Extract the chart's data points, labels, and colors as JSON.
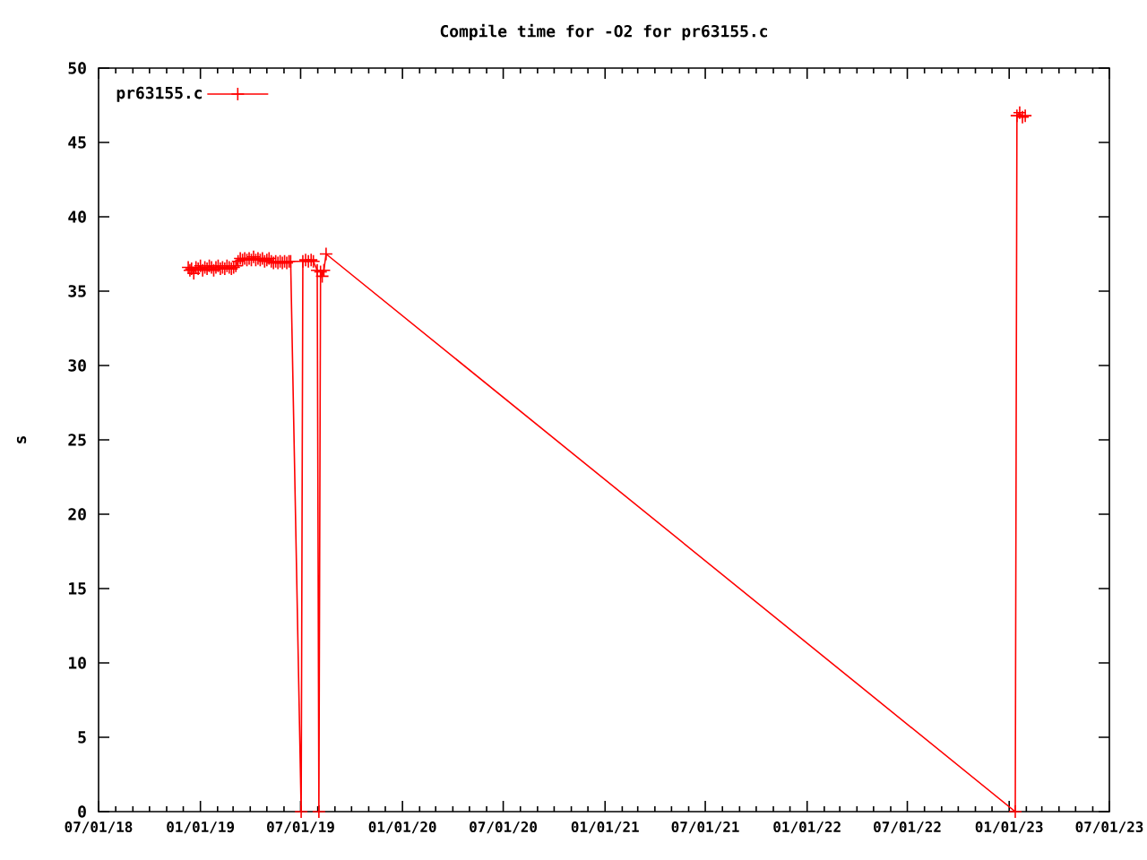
{
  "chart_data": {
    "type": "line",
    "title": "Compile time for -O2 for pr63155.c",
    "ylabel": "s",
    "x": [
      "2018-12-10",
      "2018-12-13",
      "2018-12-16",
      "2018-12-20",
      "2018-12-24",
      "2018-12-28",
      "2019-01-01",
      "2019-01-05",
      "2019-01-09",
      "2019-01-13",
      "2019-01-17",
      "2019-01-21",
      "2019-01-25",
      "2019-01-29",
      "2019-02-02",
      "2019-02-06",
      "2019-02-10",
      "2019-02-14",
      "2019-02-18",
      "2019-02-22",
      "2019-02-26",
      "2019-03-02",
      "2019-03-06",
      "2019-03-10",
      "2019-03-14",
      "2019-03-18",
      "2019-03-22",
      "2019-03-26",
      "2019-03-30",
      "2019-04-03",
      "2019-04-07",
      "2019-04-11",
      "2019-04-15",
      "2019-04-19",
      "2019-04-23",
      "2019-04-27",
      "2019-05-01",
      "2019-05-05",
      "2019-05-09",
      "2019-05-13",
      "2019-05-17",
      "2019-05-21",
      "2019-05-25",
      "2019-05-29",
      "2019-06-02",
      "2019-06-06",
      "2019-06-10",
      "2019-06-13",
      "2019-07-02",
      "2019-07-05",
      "2019-07-10",
      "2019-07-15",
      "2019-07-20",
      "2019-07-24",
      "2019-07-31",
      "2019-08-03",
      "2019-08-06",
      "2019-08-09",
      "2019-08-12",
      "2019-08-16",
      "2023-01-12",
      "2023-01-15",
      "2023-01-20",
      "2023-01-25",
      "2023-01-30"
    ],
    "series": [
      {
        "name": "pr63155.c",
        "color": "#ff0000",
        "values": [
          36.6,
          36.4,
          36.5,
          36.2,
          36.6,
          36.5,
          36.7,
          36.4,
          36.6,
          36.5,
          36.7,
          36.6,
          36.4,
          36.6,
          36.7,
          36.5,
          36.6,
          36.5,
          36.7,
          36.6,
          36.5,
          36.6,
          36.7,
          37.0,
          37.2,
          37.1,
          37.2,
          37.1,
          37.2,
          37.1,
          37.3,
          37.1,
          37.2,
          37.1,
          37.2,
          37.0,
          37.1,
          37.2,
          37.0,
          36.9,
          37.0,
          36.9,
          37.0,
          36.9,
          37.0,
          36.9,
          37.0,
          37.0,
          0,
          37.0,
          37.1,
          37.0,
          37.1,
          37.0,
          36.4,
          0,
          36.3,
          36.0,
          36.4,
          37.5,
          0,
          46.8,
          47.0,
          46.7,
          46.8
        ]
      }
    ],
    "xlim": [
      "2018-07-01",
      "2023-07-01"
    ],
    "xticks": [
      {
        "value": "2018-07-01",
        "label": "07/01/18"
      },
      {
        "value": "2018-08-01",
        "label": null
      },
      {
        "value": "2018-09-01",
        "label": null
      },
      {
        "value": "2018-10-01",
        "label": null
      },
      {
        "value": "2018-11-01",
        "label": null
      },
      {
        "value": "2018-12-01",
        "label": null
      },
      {
        "value": "2019-01-01",
        "label": "01/01/19"
      },
      {
        "value": "2019-02-01",
        "label": null
      },
      {
        "value": "2019-03-01",
        "label": null
      },
      {
        "value": "2019-04-01",
        "label": null
      },
      {
        "value": "2019-05-01",
        "label": null
      },
      {
        "value": "2019-06-01",
        "label": null
      },
      {
        "value": "2019-07-01",
        "label": "07/01/19"
      },
      {
        "value": "2019-08-01",
        "label": null
      },
      {
        "value": "2019-09-01",
        "label": null
      },
      {
        "value": "2019-10-01",
        "label": null
      },
      {
        "value": "2019-11-01",
        "label": null
      },
      {
        "value": "2019-12-01",
        "label": null
      },
      {
        "value": "2020-01-01",
        "label": "01/01/20"
      },
      {
        "value": "2020-02-01",
        "label": null
      },
      {
        "value": "2020-03-01",
        "label": null
      },
      {
        "value": "2020-04-01",
        "label": null
      },
      {
        "value": "2020-05-01",
        "label": null
      },
      {
        "value": "2020-06-01",
        "label": null
      },
      {
        "value": "2020-07-01",
        "label": "07/01/20"
      },
      {
        "value": "2020-08-01",
        "label": null
      },
      {
        "value": "2020-09-01",
        "label": null
      },
      {
        "value": "2020-10-01",
        "label": null
      },
      {
        "value": "2020-11-01",
        "label": null
      },
      {
        "value": "2020-12-01",
        "label": null
      },
      {
        "value": "2021-01-01",
        "label": "01/01/21"
      },
      {
        "value": "2021-02-01",
        "label": null
      },
      {
        "value": "2021-03-01",
        "label": null
      },
      {
        "value": "2021-04-01",
        "label": null
      },
      {
        "value": "2021-05-01",
        "label": null
      },
      {
        "value": "2021-06-01",
        "label": null
      },
      {
        "value": "2021-07-01",
        "label": "07/01/21"
      },
      {
        "value": "2021-08-01",
        "label": null
      },
      {
        "value": "2021-09-01",
        "label": null
      },
      {
        "value": "2021-10-01",
        "label": null
      },
      {
        "value": "2021-11-01",
        "label": null
      },
      {
        "value": "2021-12-01",
        "label": null
      },
      {
        "value": "2022-01-01",
        "label": "01/01/22"
      },
      {
        "value": "2022-02-01",
        "label": null
      },
      {
        "value": "2022-03-01",
        "label": null
      },
      {
        "value": "2022-04-01",
        "label": null
      },
      {
        "value": "2022-05-01",
        "label": null
      },
      {
        "value": "2022-06-01",
        "label": null
      },
      {
        "value": "2022-07-01",
        "label": "07/01/22"
      },
      {
        "value": "2022-08-01",
        "label": null
      },
      {
        "value": "2022-09-01",
        "label": null
      },
      {
        "value": "2022-10-01",
        "label": null
      },
      {
        "value": "2022-11-01",
        "label": null
      },
      {
        "value": "2022-12-01",
        "label": null
      },
      {
        "value": "2023-01-01",
        "label": "01/01/23"
      },
      {
        "value": "2023-02-01",
        "label": null
      },
      {
        "value": "2023-03-01",
        "label": null
      },
      {
        "value": "2023-04-01",
        "label": null
      },
      {
        "value": "2023-05-01",
        "label": null
      },
      {
        "value": "2023-06-01",
        "label": null
      },
      {
        "value": "2023-07-01",
        "label": "07/01/23"
      }
    ],
    "ylim": [
      0,
      50
    ],
    "yticks": [
      0,
      5,
      10,
      15,
      20,
      25,
      30,
      35,
      40,
      45,
      50
    ],
    "marker": "cross",
    "legend": "top left"
  }
}
